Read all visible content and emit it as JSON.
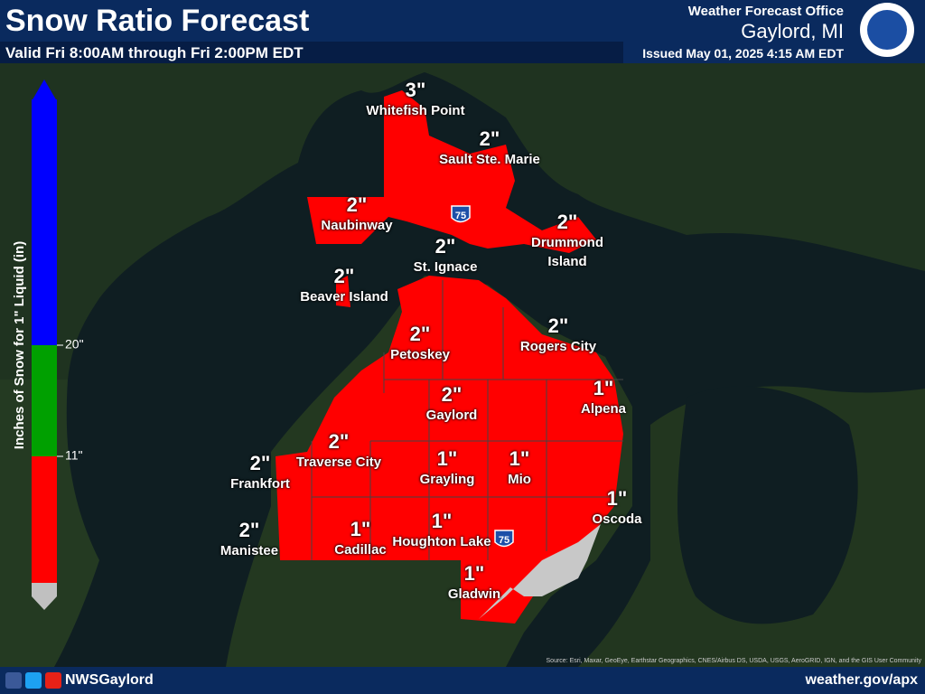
{
  "header": {
    "title": "Snow Ratio Forecast",
    "subtitle": "Valid Fri 8:00AM through Fri 2:00PM EDT",
    "office": "Weather Forecast Office",
    "location": "Gaylord, MI",
    "issued": "Issued May 01, 2025 4:15 AM EDT"
  },
  "legend": {
    "title": "Inches of Snow for 1\" Liquid (in)",
    "ticks": [
      "20\"",
      "11\""
    ]
  },
  "places": [
    {
      "name": "Whitefish Point",
      "value": "3\""
    },
    {
      "name": "Sault Ste. Marie",
      "value": "2\""
    },
    {
      "name": "Naubinway",
      "value": "2\""
    },
    {
      "name": "Drummond Island",
      "value": "2\""
    },
    {
      "name": "St. Ignace",
      "value": "2\""
    },
    {
      "name": "Beaver Island",
      "value": "2\""
    },
    {
      "name": "Petoskey",
      "value": "2\""
    },
    {
      "name": "Rogers City",
      "value": "2\""
    },
    {
      "name": "Alpena",
      "value": "1\""
    },
    {
      "name": "Gaylord",
      "value": "2\""
    },
    {
      "name": "Traverse City",
      "value": "2\""
    },
    {
      "name": "Frankfort",
      "value": "2\""
    },
    {
      "name": "Grayling",
      "value": "1\""
    },
    {
      "name": "Mio",
      "value": "1\""
    },
    {
      "name": "Oscoda",
      "value": "1\""
    },
    {
      "name": "Manistee",
      "value": "2\""
    },
    {
      "name": "Cadillac",
      "value": "1\""
    },
    {
      "name": "Houghton Lake",
      "value": "1\""
    },
    {
      "name": "Gladwin",
      "value": "1\""
    }
  ],
  "highways": [
    "75",
    "75"
  ],
  "footer": {
    "social": "NWSGaylord",
    "url": "weather.gov/apx",
    "source": "Source: Esri, Maxar, GeoEye, Earthstar Geographics, CNES/Airbus DS, USDA, USGS, AeroGRID, IGN, and the GIS User Community"
  }
}
